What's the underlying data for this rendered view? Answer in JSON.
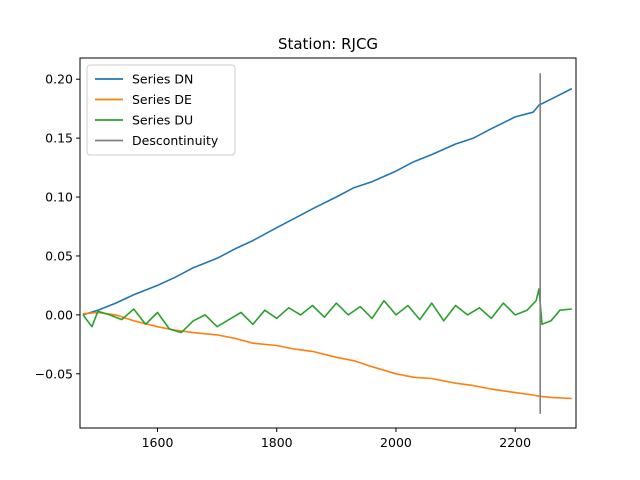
{
  "chart_data": {
    "type": "line",
    "title": "Station: RJCG",
    "xlabel": "",
    "ylabel": "",
    "xlim": [
      1470,
      2302
    ],
    "ylim": [
      -0.096,
      0.218
    ],
    "xticks": [
      1600,
      1800,
      2000,
      2200
    ],
    "xtick_labels": [
      "1600",
      "1800",
      "2000",
      "2200"
    ],
    "yticks": [
      -0.05,
      0.0,
      0.05,
      0.1,
      0.15,
      0.2
    ],
    "ytick_labels": [
      "−0.05",
      "0.00",
      "0.05",
      "0.10",
      "0.15",
      "0.20"
    ],
    "grid": false,
    "legend_position": "top-left",
    "series": [
      {
        "name": "Series DN",
        "color": "#1f77b4",
        "x": [
          1475,
          1500,
          1530,
          1560,
          1600,
          1630,
          1660,
          1700,
          1730,
          1760,
          1800,
          1830,
          1860,
          1900,
          1930,
          1960,
          2000,
          2030,
          2060,
          2100,
          2130,
          2160,
          2200,
          2230,
          2240,
          2260,
          2295
        ],
        "y": [
          0.0,
          0.004,
          0.01,
          0.017,
          0.025,
          0.032,
          0.04,
          0.048,
          0.056,
          0.063,
          0.074,
          0.082,
          0.09,
          0.1,
          0.108,
          0.113,
          0.122,
          0.13,
          0.136,
          0.145,
          0.15,
          0.158,
          0.168,
          0.172,
          0.178,
          0.183,
          0.192
        ]
      },
      {
        "name": "Series DE",
        "color": "#ff7f0e",
        "x": [
          1475,
          1500,
          1530,
          1560,
          1600,
          1630,
          1660,
          1700,
          1730,
          1760,
          1800,
          1830,
          1860,
          1900,
          1930,
          1960,
          2000,
          2030,
          2060,
          2100,
          2130,
          2160,
          2200,
          2230,
          2240,
          2260,
          2295
        ],
        "y": [
          0.001,
          0.002,
          0.0,
          -0.005,
          -0.01,
          -0.013,
          -0.015,
          -0.017,
          -0.02,
          -0.024,
          -0.026,
          -0.029,
          -0.031,
          -0.036,
          -0.039,
          -0.044,
          -0.05,
          -0.053,
          -0.054,
          -0.058,
          -0.06,
          -0.063,
          -0.066,
          -0.068,
          -0.069,
          -0.07,
          -0.071
        ]
      },
      {
        "name": "Series DU",
        "color": "#2ca02c",
        "x": [
          1475,
          1490,
          1500,
          1520,
          1540,
          1560,
          1580,
          1600,
          1620,
          1640,
          1660,
          1680,
          1700,
          1720,
          1740,
          1760,
          1780,
          1800,
          1820,
          1840,
          1860,
          1880,
          1900,
          1920,
          1940,
          1960,
          1980,
          2000,
          2020,
          2040,
          2060,
          2080,
          2100,
          2120,
          2140,
          2160,
          2180,
          2200,
          2220,
          2235,
          2240,
          2245,
          2260,
          2275,
          2295
        ],
        "y": [
          0.0,
          -0.01,
          0.003,
          0.0,
          -0.004,
          0.005,
          -0.008,
          0.002,
          -0.012,
          -0.015,
          -0.005,
          0.0,
          -0.01,
          -0.004,
          0.002,
          -0.008,
          0.004,
          -0.003,
          0.006,
          0.0,
          0.008,
          -0.002,
          0.01,
          0.0,
          0.007,
          -0.003,
          0.012,
          0.0,
          0.008,
          -0.004,
          0.01,
          -0.005,
          0.008,
          0.0,
          0.006,
          -0.003,
          0.01,
          0.0,
          0.004,
          0.012,
          0.022,
          -0.008,
          -0.005,
          0.004,
          0.005
        ]
      },
      {
        "name": "Descontinuity",
        "color": "#808080",
        "type": "vline",
        "x": [
          2242,
          2242
        ],
        "y": [
          -0.084,
          0.205
        ]
      }
    ]
  }
}
